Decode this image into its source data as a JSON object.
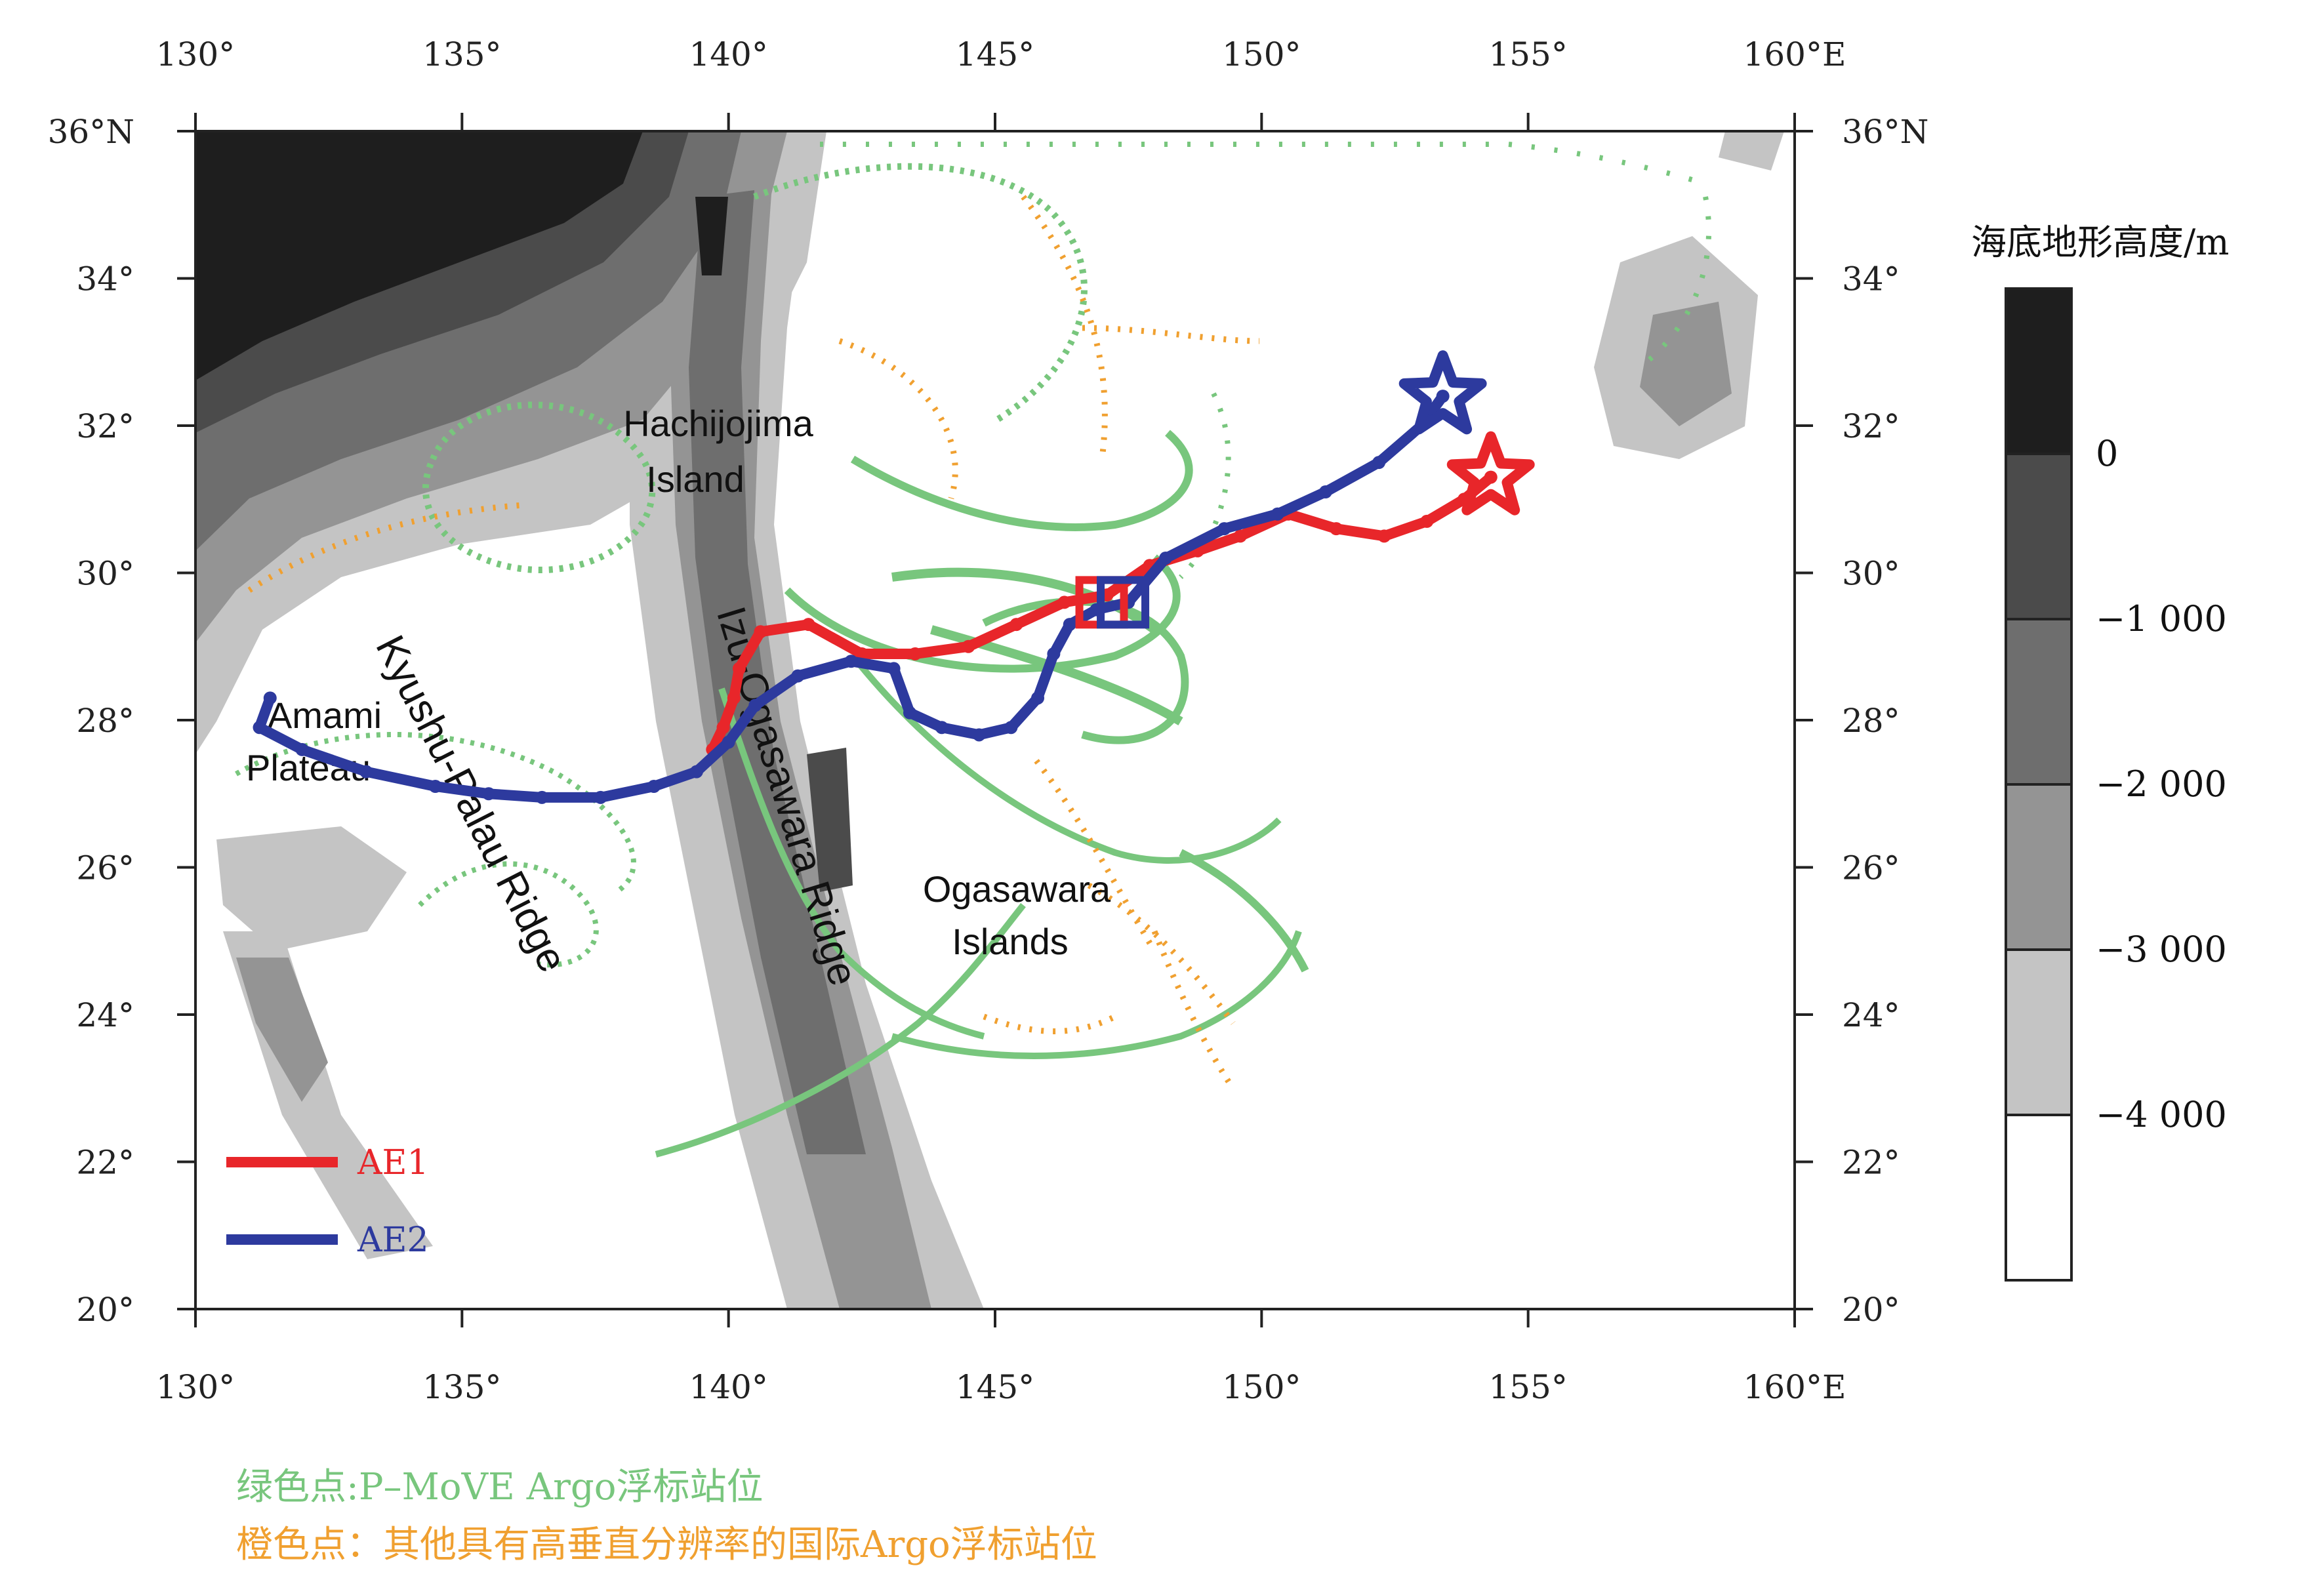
{
  "map": {
    "extent": {
      "lon_min": 130,
      "lon_max": 160,
      "lat_min": 20,
      "lat_max": 36
    },
    "x_ticks": [
      {
        "lon": 130,
        "label": "130°"
      },
      {
        "lon": 135,
        "label": "135°"
      },
      {
        "lon": 140,
        "label": "140°"
      },
      {
        "lon": 145,
        "label": "145°"
      },
      {
        "lon": 150,
        "label": "150°"
      },
      {
        "lon": 155,
        "label": "155°"
      },
      {
        "lon": 160,
        "label": "160°E"
      }
    ],
    "y_ticks": [
      {
        "lat": 20,
        "label": "20°"
      },
      {
        "lat": 22,
        "label": "22°"
      },
      {
        "lat": 24,
        "label": "24°"
      },
      {
        "lat": 26,
        "label": "26°"
      },
      {
        "lat": 28,
        "label": "28°"
      },
      {
        "lat": 30,
        "label": "30°"
      },
      {
        "lat": 32,
        "label": "32°"
      },
      {
        "lat": 34,
        "label": "34°"
      },
      {
        "lat": 36,
        "label": "36°N"
      }
    ],
    "place_labels": {
      "hachijojima_1": "Hachijojima",
      "hachijojima_2": "Island",
      "amami_1": "Amami",
      "amami_2": "Plateau",
      "ogasawara_1": "Ogasawara",
      "ogasawara_2": "Islands",
      "kyushu_ridge": "Kyushu-Palau Ridge",
      "izu_ridge": "Izu-Ogasawara Ridge"
    },
    "tracks": [
      {
        "name": "AE1",
        "color": "#e8262a",
        "points": [
          [
            139.7,
            27.6
          ],
          [
            139.9,
            27.9
          ],
          [
            140.1,
            28.3
          ],
          [
            140.2,
            28.7
          ],
          [
            140.6,
            29.2
          ],
          [
            141.5,
            29.3
          ],
          [
            142.5,
            28.9
          ],
          [
            143.5,
            28.9
          ],
          [
            144.5,
            29.0
          ],
          [
            145.4,
            29.3
          ],
          [
            146.3,
            29.6
          ],
          [
            147.1,
            29.7
          ],
          [
            147.9,
            30.1
          ],
          [
            148.8,
            30.3
          ],
          [
            149.6,
            30.5
          ],
          [
            150.5,
            30.8
          ],
          [
            151.4,
            30.6
          ],
          [
            152.3,
            30.5
          ],
          [
            153.1,
            30.7
          ],
          [
            153.8,
            31.0
          ],
          [
            154.3,
            31.3
          ]
        ]
      },
      {
        "name": "AE2",
        "color": "#2d3a9e",
        "points": [
          [
            131.4,
            28.3
          ],
          [
            131.2,
            27.9
          ],
          [
            132.0,
            27.6
          ],
          [
            133.2,
            27.3
          ],
          [
            134.5,
            27.1
          ],
          [
            135.5,
            27.0
          ],
          [
            136.5,
            26.95
          ],
          [
            137.6,
            26.95
          ],
          [
            138.6,
            27.1
          ],
          [
            139.4,
            27.3
          ],
          [
            140.0,
            27.7
          ],
          [
            140.5,
            28.2
          ],
          [
            141.3,
            28.6
          ],
          [
            142.3,
            28.8
          ],
          [
            143.1,
            28.7
          ],
          [
            143.4,
            28.1
          ],
          [
            144.0,
            27.9
          ],
          [
            144.7,
            27.8
          ],
          [
            145.3,
            27.9
          ],
          [
            145.8,
            28.3
          ],
          [
            146.1,
            28.9
          ],
          [
            146.4,
            29.3
          ],
          [
            146.9,
            29.5
          ],
          [
            147.5,
            29.6
          ],
          [
            148.2,
            30.2
          ],
          [
            149.3,
            30.6
          ],
          [
            150.3,
            30.8
          ],
          [
            151.2,
            31.1
          ],
          [
            152.2,
            31.5
          ],
          [
            153.0,
            32.0
          ],
          [
            153.4,
            32.4
          ]
        ]
      }
    ],
    "markers": {
      "ae1_start_star": {
        "lon": 154.3,
        "lat": 31.3,
        "color": "#e8262a"
      },
      "ae2_start_star": {
        "lon": 153.4,
        "lat": 32.4,
        "color": "#2d3a9e"
      },
      "ae1_square": {
        "lon": 147.0,
        "lat": 29.6,
        "color": "#e8262a"
      },
      "ae2_square": {
        "lon": 147.4,
        "lat": 29.6,
        "color": "#2d3a9e"
      }
    }
  },
  "legend": {
    "ae1_label": "AE1",
    "ae2_label": "AE2",
    "ae1_color": "#e8262a",
    "ae2_color": "#2d3a9e"
  },
  "colorbar": {
    "title": "海底地形高度/m",
    "labels": [
      "0",
      "−1 000",
      "−2 000",
      "−3 000",
      "−4 000"
    ],
    "colors": [
      "#1e1e1e",
      "#4b4b4b",
      "#6e6e6e",
      "#949494",
      "#c4c4c4",
      "#ffffff"
    ]
  },
  "footer": {
    "green_note": "绿色点:P–MoVE Argo浮标站位",
    "orange_note": "橙色点：其他具有高垂直分辨率的国际Argo浮标站位",
    "green_color": "#78c67d",
    "orange_color": "#f0a030"
  }
}
